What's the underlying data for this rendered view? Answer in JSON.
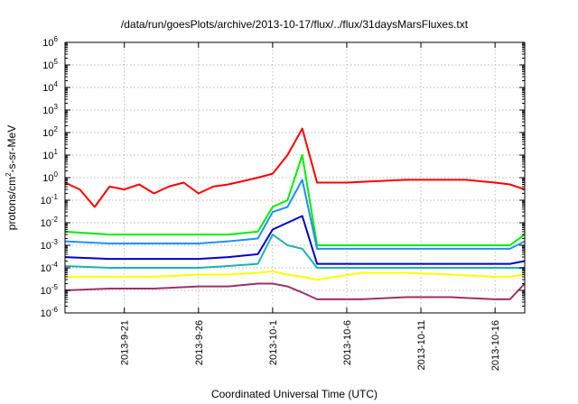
{
  "chart_data": {
    "type": "line",
    "title": "/data/run/goesPlots/archive/2013-10-17/flux/../flux/31daysMarsFluxes.txt",
    "xlabel": "Coordinated Universal Time (UTC)",
    "ylabel_parts": {
      "base": "protons/cm",
      "exp": "2",
      "rest": "-s-sr-MeV"
    },
    "xlim": [
      "2013-09-17",
      "2013-10-18"
    ],
    "ylim": [
      1e-06,
      1000000.0
    ],
    "yscale": "log",
    "grid": true,
    "xticks": [
      "2013-9-21",
      "2013-9-26",
      "2013-10-1",
      "2013-10-6",
      "2013-10-11",
      "2013-10-16"
    ],
    "yticks": [
      {
        "base": "10",
        "exp": "-6",
        "value": 1e-06
      },
      {
        "base": "10",
        "exp": "-5",
        "value": 1e-05
      },
      {
        "base": "10",
        "exp": "-4",
        "value": 0.0001
      },
      {
        "base": "10",
        "exp": "-3",
        "value": 0.001
      },
      {
        "base": "10",
        "exp": "-2",
        "value": 0.01
      },
      {
        "base": "10",
        "exp": "-1",
        "value": 0.1
      },
      {
        "base": "10",
        "exp": "0",
        "value": 1
      },
      {
        "base": "10",
        "exp": "1",
        "value": 10
      },
      {
        "base": "10",
        "exp": "2",
        "value": 100
      },
      {
        "base": "10",
        "exp": "3",
        "value": 1000
      },
      {
        "base": "10",
        "exp": "4",
        "value": 10000
      },
      {
        "base": "10",
        "exp": "5",
        "value": 100000
      },
      {
        "base": "10",
        "exp": "6",
        "value": 1000000
      }
    ],
    "series": [
      {
        "color": "#ff0000",
        "x": [
          "2013-09-17",
          "2013-09-18",
          "2013-09-19",
          "2013-09-20",
          "2013-09-21",
          "2013-09-22",
          "2013-09-23",
          "2013-09-24",
          "2013-09-25",
          "2013-09-26",
          "2013-09-27",
          "2013-09-28",
          "2013-09-29",
          "2013-09-30",
          "2013-10-01",
          "2013-10-02",
          "2013-10-03",
          "2013-10-04",
          "2013-10-06",
          "2013-10-08",
          "2013-10-10",
          "2013-10-12",
          "2013-10-14",
          "2013-10-16",
          "2013-10-17",
          "2013-10-18"
        ],
        "y": [
          0.6,
          0.3,
          0.05,
          0.4,
          0.3,
          0.5,
          0.2,
          0.4,
          0.6,
          0.2,
          0.4,
          0.5,
          0.7,
          1.0,
          1.5,
          10,
          150,
          0.6,
          0.6,
          0.7,
          0.8,
          0.8,
          0.8,
          0.6,
          0.5,
          0.3
        ]
      },
      {
        "color": "#00ee00",
        "x": [
          "2013-09-17",
          "2013-09-20",
          "2013-09-23",
          "2013-09-26",
          "2013-09-28",
          "2013-09-30",
          "2013-10-01",
          "2013-10-02",
          "2013-10-03",
          "2013-10-04",
          "2013-10-07",
          "2013-10-10",
          "2013-10-13",
          "2013-10-16",
          "2013-10-17",
          "2013-10-18"
        ],
        "y": [
          0.004,
          0.003,
          0.003,
          0.003,
          0.003,
          0.004,
          0.05,
          0.1,
          10,
          0.001,
          0.001,
          0.001,
          0.001,
          0.001,
          0.001,
          0.003
        ]
      },
      {
        "color": "#1e90ff",
        "x": [
          "2013-09-17",
          "2013-09-20",
          "2013-09-23",
          "2013-09-26",
          "2013-09-28",
          "2013-09-30",
          "2013-10-01",
          "2013-10-02",
          "2013-10-03",
          "2013-10-04",
          "2013-10-07",
          "2013-10-10",
          "2013-10-13",
          "2013-10-16",
          "2013-10-17",
          "2013-10-18"
        ],
        "y": [
          0.0015,
          0.0012,
          0.0012,
          0.0012,
          0.0015,
          0.002,
          0.03,
          0.05,
          0.8,
          0.0007,
          0.0007,
          0.0007,
          0.0007,
          0.0007,
          0.0007,
          0.0015
        ]
      },
      {
        "color": "#0000cc",
        "x": [
          "2013-09-17",
          "2013-09-20",
          "2013-09-23",
          "2013-09-26",
          "2013-09-28",
          "2013-09-30",
          "2013-10-01",
          "2013-10-02",
          "2013-10-03",
          "2013-10-04",
          "2013-10-07",
          "2013-10-10",
          "2013-10-13",
          "2013-10-16",
          "2013-10-17",
          "2013-10-18"
        ],
        "y": [
          0.0003,
          0.00025,
          0.00025,
          0.00025,
          0.0003,
          0.0004,
          0.005,
          0.01,
          0.02,
          0.00015,
          0.00015,
          0.00015,
          0.00015,
          0.00015,
          0.00015,
          0.0002
        ]
      },
      {
        "color": "#20b2aa",
        "x": [
          "2013-09-17",
          "2013-09-20",
          "2013-09-23",
          "2013-09-26",
          "2013-09-28",
          "2013-09-30",
          "2013-10-01",
          "2013-10-02",
          "2013-10-03",
          "2013-10-04",
          "2013-10-07",
          "2013-10-10",
          "2013-10-13",
          "2013-10-16",
          "2013-10-17",
          "2013-10-18"
        ],
        "y": [
          0.00012,
          0.0001,
          0.0001,
          0.0001,
          0.00012,
          0.00015,
          0.003,
          0.001,
          0.0007,
          0.0001,
          0.0001,
          0.0001,
          0.0001,
          0.0001,
          0.0001,
          0.0001
        ]
      },
      {
        "color": "#ffff00",
        "x": [
          "2013-09-17",
          "2013-09-20",
          "2013-09-23",
          "2013-09-26",
          "2013-09-28",
          "2013-09-30",
          "2013-10-01",
          "2013-10-02",
          "2013-10-03",
          "2013-10-04",
          "2013-10-07",
          "2013-10-10",
          "2013-10-13",
          "2013-10-16",
          "2013-10-17",
          "2013-10-18"
        ],
        "y": [
          4e-05,
          4e-05,
          4e-05,
          5e-05,
          5e-05,
          6e-05,
          7e-05,
          5e-05,
          4e-05,
          3e-05,
          6e-05,
          6e-05,
          5e-05,
          4e-05,
          4e-05,
          5e-05
        ]
      },
      {
        "color": "#993366",
        "x": [
          "2013-09-17",
          "2013-09-20",
          "2013-09-23",
          "2013-09-26",
          "2013-09-28",
          "2013-09-30",
          "2013-10-01",
          "2013-10-02",
          "2013-10-03",
          "2013-10-04",
          "2013-10-07",
          "2013-10-10",
          "2013-10-13",
          "2013-10-16",
          "2013-10-17",
          "2013-10-18"
        ],
        "y": [
          1e-05,
          1.2e-05,
          1.2e-05,
          1.5e-05,
          1.5e-05,
          2e-05,
          2e-05,
          1.5e-05,
          8e-06,
          4e-06,
          4e-06,
          5e-06,
          5e-06,
          4e-06,
          4e-06,
          2e-05
        ]
      }
    ]
  }
}
